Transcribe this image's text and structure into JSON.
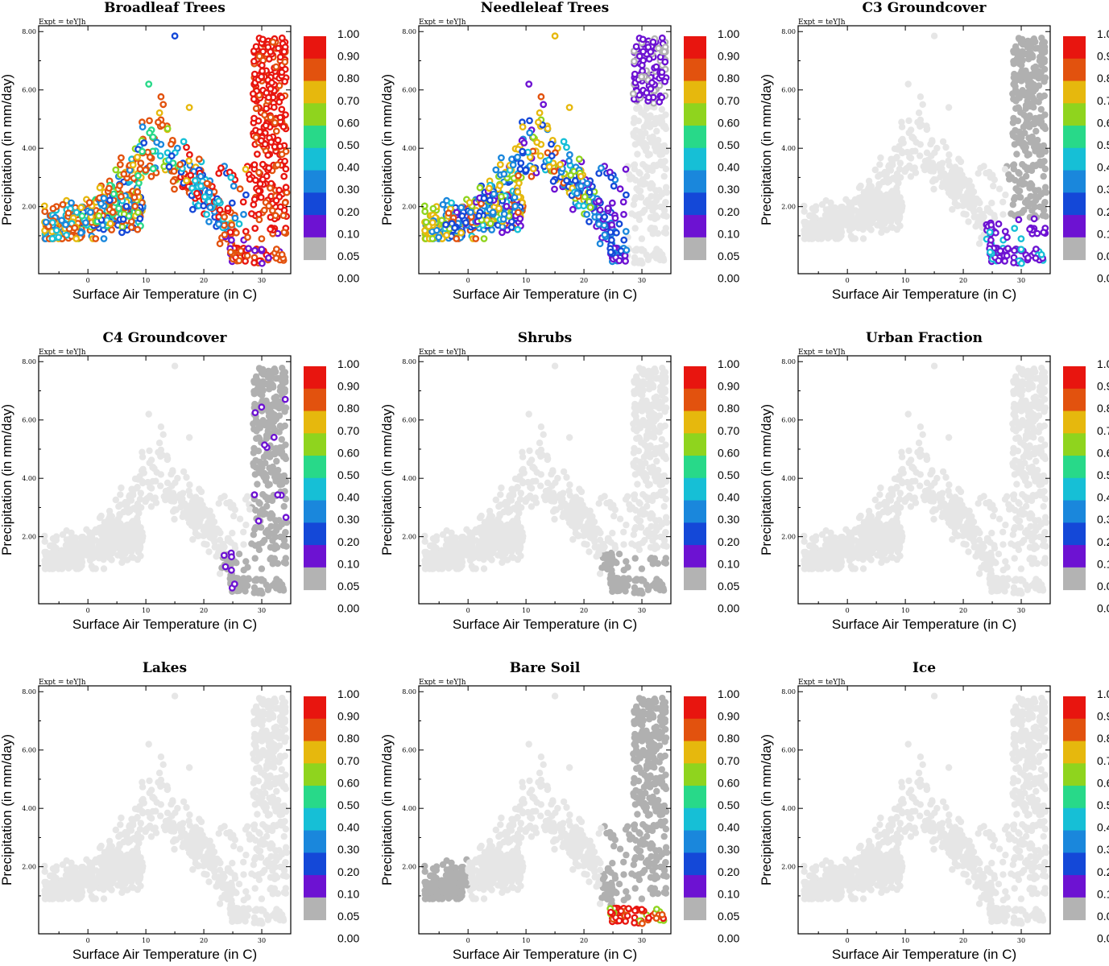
{
  "chart_data": {
    "type": "scatter",
    "xlabel": "Surface Air Temperature (in C)",
    "ylabel": "Precipitation (in mm/day)",
    "expt": "Expt = teYJh",
    "xlim": [
      -8.5,
      35
    ],
    "ylim": [
      -0.3,
      8.2
    ],
    "xticks": [
      {
        "v": 0,
        "t": "0"
      },
      {
        "v": 10,
        "t": "10"
      },
      {
        "v": 20,
        "t": "20"
      },
      {
        "v": 30,
        "t": "30"
      }
    ],
    "yticks": [
      {
        "v": 2,
        "t": "2.00"
      },
      {
        "v": 4,
        "t": "4.00"
      },
      {
        "v": 6,
        "t": "6.00"
      },
      {
        "v": 8,
        "t": "8.00"
      }
    ],
    "colorbar": {
      "labels": [
        "1.00",
        "0.90",
        "0.80",
        "0.70",
        "0.60",
        "0.50",
        "0.40",
        "0.30",
        "0.20",
        "0.10",
        "0.05",
        "0.00"
      ],
      "colors": [
        "#e8150f",
        "#e2520e",
        "#e6b80d",
        "#8fd41e",
        "#28d989",
        "#16bfd6",
        "#1a87dc",
        "#1448d8",
        "#6d12d2",
        "#b3b3b3"
      ]
    },
    "panels": [
      {
        "title": "Broadleaf Trees",
        "pattern": "broadleaf"
      },
      {
        "title": "Needleleaf Trees",
        "pattern": "needleleaf"
      },
      {
        "title": "C3 Groundcover",
        "pattern": "c3"
      },
      {
        "title": "C4 Groundcover",
        "pattern": "c4"
      },
      {
        "title": "Shrubs",
        "pattern": "shrubs"
      },
      {
        "title": "Urban Fraction",
        "pattern": "urban"
      },
      {
        "title": "Lakes",
        "pattern": "lakes"
      },
      {
        "title": "Bare Soil",
        "pattern": "baresoil"
      },
      {
        "title": "Ice",
        "pattern": "ice"
      }
    ]
  }
}
